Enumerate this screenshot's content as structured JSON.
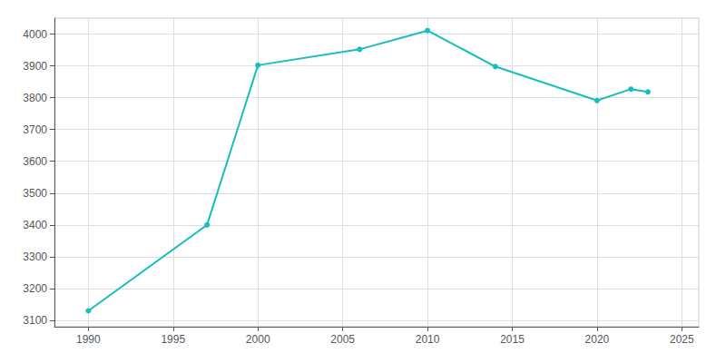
{
  "chart_data": {
    "type": "line",
    "x": [
      1990,
      1997,
      2000,
      2006,
      2010,
      2014,
      2020,
      2022,
      2023
    ],
    "values": [
      3130,
      3400,
      3902,
      3952,
      4011,
      3898,
      3791,
      3827,
      3818
    ],
    "color": "#17BEBB",
    "marker": "circle",
    "xlim": [
      1988,
      2026
    ],
    "ylim": [
      3080,
      4050
    ],
    "xticks": [
      1990,
      1995,
      2000,
      2005,
      2010,
      2015,
      2020,
      2025
    ],
    "yticks": [
      3100,
      3200,
      3300,
      3400,
      3500,
      3600,
      3700,
      3800,
      3900,
      4000
    ],
    "grid": true
  }
}
